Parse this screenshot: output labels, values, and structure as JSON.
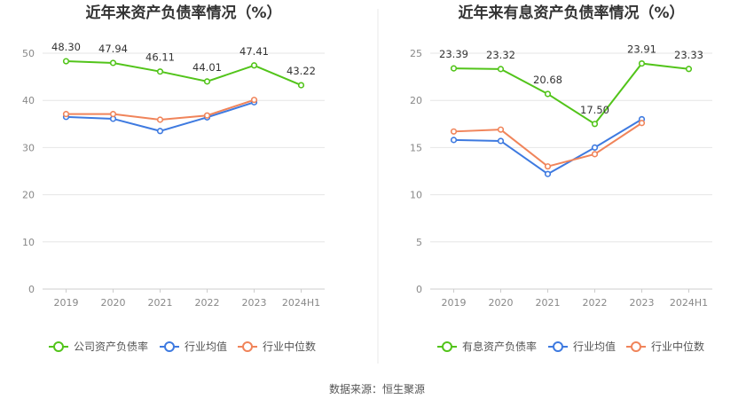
{
  "source_label": "数据来源：恒生聚源",
  "chart_data": [
    {
      "type": "line",
      "title": "近年来资产负债率情况（%）",
      "categories": [
        "2019",
        "2020",
        "2021",
        "2022",
        "2023",
        "2024H1"
      ],
      "ylim": [
        0,
        50
      ],
      "yticks": [
        "0",
        "10",
        "20",
        "30",
        "40",
        "50"
      ],
      "grid": true,
      "legend_position": "bottom",
      "series": [
        {
          "name": "公司资产负债率",
          "color": "#52c41a",
          "values": [
            48.3,
            47.94,
            46.11,
            44.01,
            47.41,
            43.22
          ],
          "labels": [
            "48.30",
            "47.94",
            "46.11",
            "44.01",
            "47.41",
            "43.22"
          ]
        },
        {
          "name": "行业均值",
          "color": "#3e7ae0",
          "values": [
            36.5,
            36.1,
            33.5,
            36.4,
            39.6,
            null
          ]
        },
        {
          "name": "行业中位数",
          "color": "#f0845a",
          "values": [
            37.1,
            37.1,
            35.9,
            36.8,
            40.1,
            null
          ]
        }
      ]
    },
    {
      "type": "line",
      "title": "近年来有息资产负债率情况（%）",
      "categories": [
        "2019",
        "2020",
        "2021",
        "2022",
        "2023",
        "2024H1"
      ],
      "ylim": [
        0,
        25
      ],
      "yticks": [
        "0",
        "5",
        "10",
        "15",
        "20",
        "25"
      ],
      "grid": true,
      "legend_position": "bottom",
      "series": [
        {
          "name": "有息资产负债率",
          "color": "#52c41a",
          "values": [
            23.39,
            23.32,
            20.68,
            17.5,
            23.91,
            23.33
          ],
          "labels": [
            "23.39",
            "23.32",
            "20.68",
            "17.50",
            "23.91",
            "23.33"
          ]
        },
        {
          "name": "行业均值",
          "color": "#3e7ae0",
          "values": [
            15.8,
            15.7,
            12.2,
            15.0,
            18.0,
            null
          ]
        },
        {
          "name": "行业中位数",
          "color": "#f0845a",
          "values": [
            16.7,
            16.9,
            13.0,
            14.3,
            17.6,
            null
          ]
        }
      ]
    }
  ]
}
